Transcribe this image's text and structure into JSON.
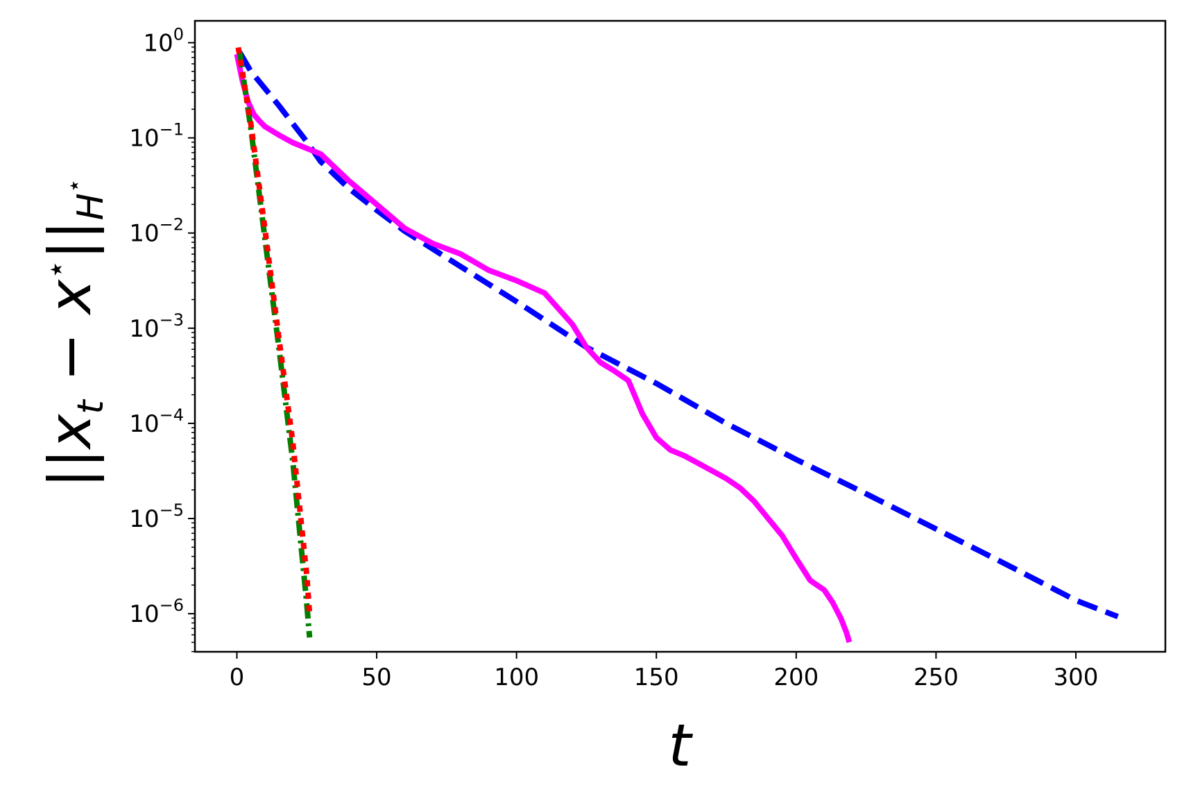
{
  "chart_data": {
    "type": "line",
    "xlabel": "t",
    "ylabel": "||x_t − x*||_H*",
    "ylabel_parts": {
      "bars_left": "||",
      "x": "x",
      "t_sub": "t",
      "minus": " − ",
      "x_star": "x",
      "star": "⋆",
      "bars_right": "||",
      "H": "H",
      "H_star": "⋆"
    },
    "xlim": [
      -15,
      332
    ],
    "ylim_log10": [
      -6.4,
      0.23
    ],
    "y_scale": "log",
    "grid": false,
    "legend": "none",
    "x_ticks": [
      0,
      50,
      100,
      150,
      200,
      250,
      300
    ],
    "x_tick_labels": [
      "0",
      "50",
      "100",
      "150",
      "200",
      "250",
      "300"
    ],
    "y_ticks_exp": [
      0,
      -1,
      -2,
      -3,
      -4,
      -5,
      -6
    ],
    "y_tick_base": "10",
    "y_tick_exps": [
      "0",
      "−1",
      "−2",
      "−3",
      "−4",
      "−5",
      "−6"
    ],
    "series": [
      {
        "color": "#0000ff",
        "style": "dashed",
        "x": [
          1,
          5,
          10,
          15,
          20,
          25,
          30,
          40,
          50,
          60,
          75,
          100,
          125,
          150,
          175,
          200,
          225,
          250,
          275,
          300,
          315
        ],
        "y_log10": [
          -0.1,
          -0.3,
          -0.48,
          -0.66,
          -0.85,
          -1.04,
          -1.25,
          -1.53,
          -1.76,
          -1.98,
          -2.26,
          -2.72,
          -3.2,
          -3.58,
          -4.0,
          -4.38,
          -4.74,
          -5.11,
          -5.48,
          -5.86,
          -6.03
        ]
      },
      {
        "color": "#ff00ff",
        "style": "solid",
        "x": [
          0,
          2,
          4,
          6,
          8,
          10,
          15,
          20,
          30,
          40,
          50,
          60,
          70,
          80,
          90,
          100,
          110,
          120,
          125,
          130,
          135,
          140,
          145,
          150,
          155,
          160,
          165,
          170,
          175,
          180,
          185,
          190,
          195,
          200,
          205,
          210,
          213,
          216,
          218,
          219
        ],
        "y_log10": [
          -0.12,
          -0.4,
          -0.62,
          -0.75,
          -0.82,
          -0.88,
          -0.97,
          -1.05,
          -1.17,
          -1.45,
          -1.7,
          -1.95,
          -2.11,
          -2.22,
          -2.39,
          -2.5,
          -2.63,
          -2.96,
          -3.2,
          -3.36,
          -3.45,
          -3.55,
          -3.9,
          -4.15,
          -4.28,
          -4.34,
          -4.42,
          -4.5,
          -4.58,
          -4.68,
          -4.82,
          -5.0,
          -5.18,
          -5.42,
          -5.65,
          -5.75,
          -5.88,
          -6.05,
          -6.2,
          -6.3
        ]
      },
      {
        "color": "#008000",
        "style": "dashdot",
        "x": [
          1,
          5,
          10,
          15,
          20,
          25,
          26
        ],
        "y_log10": [
          -0.1,
          -0.9,
          -2.05,
          -3.2,
          -4.4,
          -5.9,
          -6.25
        ]
      },
      {
        "color": "#ff0000",
        "style": "dotted",
        "x": [
          0.5,
          5,
          10,
          15,
          20,
          25,
          26
        ],
        "y_log10": [
          -0.05,
          -0.85,
          -1.95,
          -3.1,
          -4.2,
          -5.6,
          -6.0
        ]
      }
    ]
  }
}
